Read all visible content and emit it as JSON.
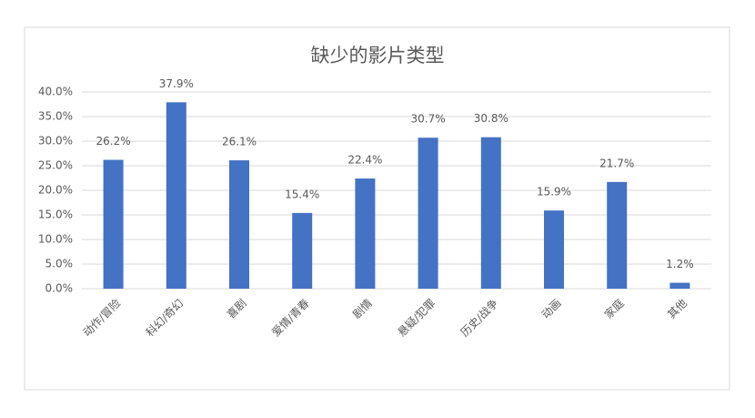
{
  "chart_data": {
    "type": "bar",
    "title": "缺少的影片类型",
    "categories": [
      "动作/冒险",
      "科幻/奇幻",
      "喜剧",
      "爱情/青春",
      "剧情",
      "悬疑/犯罪",
      "历史/战争",
      "动画",
      "家庭",
      "其他"
    ],
    "values": [
      26.2,
      37.9,
      26.1,
      15.4,
      22.4,
      30.7,
      30.8,
      15.9,
      21.7,
      1.2
    ],
    "value_labels": [
      "26.2%",
      "37.9%",
      "26.1%",
      "15.4%",
      "22.4%",
      "30.7%",
      "30.8%",
      "15.9%",
      "21.7%",
      "1.2%"
    ],
    "color": "#4472c4",
    "ylim": [
      0,
      40
    ],
    "yticks": [
      {
        "value": 0,
        "label": "0.0%"
      },
      {
        "value": 5,
        "label": "5.0%"
      },
      {
        "value": 10,
        "label": "10.0%"
      },
      {
        "value": 15,
        "label": "15.0%"
      },
      {
        "value": 20,
        "label": "20.0%"
      },
      {
        "value": 25,
        "label": "25.0%"
      },
      {
        "value": 30,
        "label": "30.0%"
      },
      {
        "value": 35,
        "label": "35.0%"
      },
      {
        "value": 40,
        "label": "40.0%"
      }
    ],
    "grid": true
  }
}
